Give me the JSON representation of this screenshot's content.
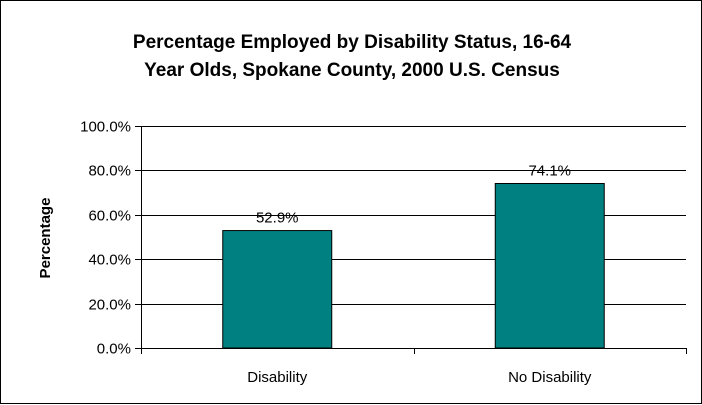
{
  "chart_data": {
    "type": "bar",
    "title_lines": [
      "Percentage Employed by Disability Status, 16-64",
      "Year Olds, Spokane County, 2000 U.S. Census"
    ],
    "xlabel": "",
    "ylabel": "Percentage",
    "categories": [
      "Disability",
      "No Disability"
    ],
    "values": [
      52.9,
      74.1
    ],
    "data_labels": [
      "52.9%",
      "74.1%"
    ],
    "ylim": [
      0,
      100
    ],
    "y_ticks": [
      0,
      20,
      40,
      60,
      80,
      100
    ],
    "y_tick_labels": [
      "0.0%",
      "20.0%",
      "40.0%",
      "60.0%",
      "80.0%",
      "100.0%"
    ],
    "grid": true,
    "legend": "none",
    "bar_color": "#008080",
    "bar_edge_color": "#000000"
  }
}
